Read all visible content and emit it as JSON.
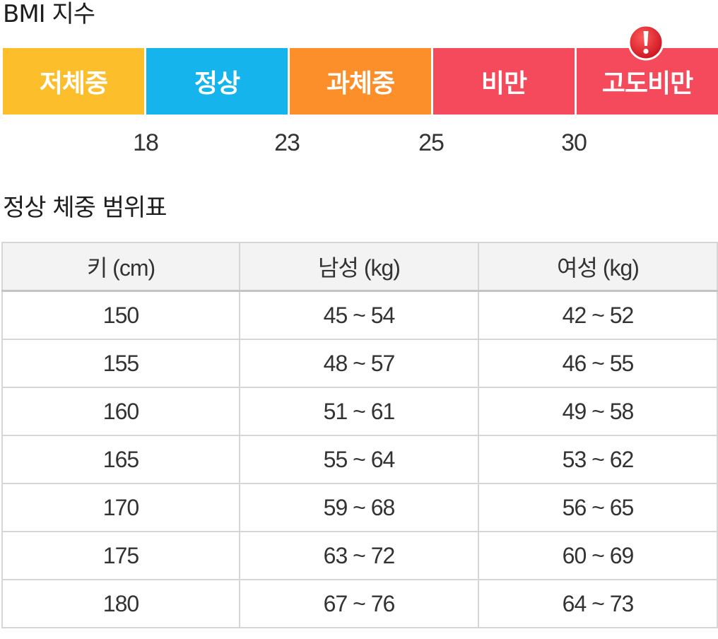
{
  "bmi": {
    "title": "BMI 지수",
    "segments": [
      {
        "label": "저체중",
        "color": "#FDBE2C"
      },
      {
        "label": "정상",
        "color": "#16B4EC"
      },
      {
        "label": "과체중",
        "color": "#FD8F2A"
      },
      {
        "label": "비만",
        "color": "#F44A5B"
      },
      {
        "label": "고도비만",
        "color": "#F44A5B"
      }
    ],
    "thresholds": [
      "18",
      "23",
      "25",
      "30"
    ],
    "alert_icon": "exclamation-circle-icon",
    "alert_color": "#E8232F"
  },
  "table": {
    "title": "정상 체중 범위표",
    "headers": [
      "키 (cm)",
      "남성 (kg)",
      "여성 (kg)"
    ],
    "rows": [
      [
        "150",
        "45 ~ 54",
        "42 ~ 52"
      ],
      [
        "155",
        "48 ~ 57",
        "46 ~ 55"
      ],
      [
        "160",
        "51 ~ 61",
        "49 ~ 58"
      ],
      [
        "165",
        "55 ~ 64",
        "53 ~ 62"
      ],
      [
        "170",
        "59 ~ 68",
        "56 ~ 65"
      ],
      [
        "175",
        "63 ~ 72",
        "60 ~ 69"
      ],
      [
        "180",
        "67 ~ 76",
        "64 ~ 73"
      ]
    ]
  }
}
